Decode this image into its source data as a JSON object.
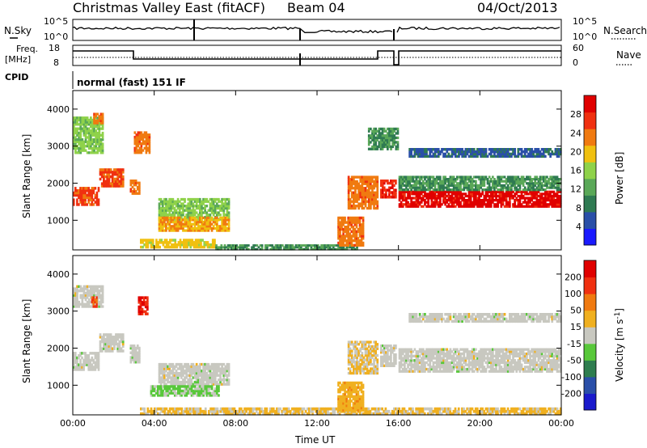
{
  "header": {
    "station": "Christmas Valley East (fitACF)",
    "beam": "Beam 04",
    "date": "04/Oct/2013",
    "mode": "normal (fast) 151 IF"
  },
  "noise_panel": {
    "left_label": "N.Sky",
    "right_label": "N.Search",
    "left_ticks": [
      "10^5",
      "10^0"
    ],
    "right_ticks": [
      "10^5",
      "10^0"
    ]
  },
  "freq_panel": {
    "left_label_1": "Freq.",
    "left_label_2": "[MHz]",
    "right_label": "Nave",
    "left_ticks": [
      "18",
      "8"
    ],
    "right_ticks": [
      "60",
      "0"
    ]
  },
  "cpid_label": "CPID",
  "colors": {
    "power": [
      "#1a1aff",
      "#2a4fa8",
      "#2f7a52",
      "#5aa858",
      "#8fd24a",
      "#f0c010",
      "#f07a10",
      "#f03010",
      "#e00000"
    ],
    "velocity": [
      "#1a1acc",
      "#2a4fa8",
      "#2e7d4f",
      "#58c83a",
      "#c8c8c0",
      "#f0b020",
      "#f07a10",
      "#f03010",
      "#e00000"
    ]
  },
  "chart_data": [
    {
      "type": "heatmap",
      "ylabel": "Slant Range [km]",
      "xlabel": "",
      "ylim": [
        200,
        4500
      ],
      "xlim_hours": [
        0,
        24
      ],
      "yticks": [
        "1000",
        "2000",
        "3000",
        "4000"
      ],
      "colorbar": {
        "label": "Power [dB]",
        "ticks": [
          "4",
          "8",
          "12",
          "16",
          "20",
          "24",
          "28"
        ],
        "range": [
          0,
          30
        ]
      },
      "bands": [
        {
          "t0": 0.0,
          "t1": 1.3,
          "r0": 1400,
          "r1": 1900,
          "level": 24
        },
        {
          "t0": 1.3,
          "t1": 2.5,
          "r0": 1900,
          "r1": 2400,
          "level": 24
        },
        {
          "t0": 2.8,
          "t1": 3.3,
          "r0": 1700,
          "r1": 2100,
          "level": 22
        },
        {
          "t0": 0.0,
          "t1": 1.5,
          "r0": 2800,
          "r1": 3800,
          "level": 14
        },
        {
          "t0": 1.0,
          "t1": 1.5,
          "r0": 3600,
          "r1": 3900,
          "level": 22
        },
        {
          "t0": 3.0,
          "t1": 3.8,
          "r0": 2800,
          "r1": 3400,
          "level": 22
        },
        {
          "t0": 4.2,
          "t1": 7.7,
          "r0": 1000,
          "r1": 1600,
          "level": 14
        },
        {
          "t0": 4.2,
          "t1": 7.7,
          "r0": 700,
          "r1": 1100,
          "level": 20
        },
        {
          "t0": 3.3,
          "t1": 7.0,
          "r0": 250,
          "r1": 500,
          "level": 18
        },
        {
          "t0": 7.0,
          "t1": 14.0,
          "r0": 200,
          "r1": 350,
          "level": 10
        },
        {
          "t0": 13.0,
          "t1": 14.3,
          "r0": 300,
          "r1": 1100,
          "level": 22
        },
        {
          "t0": 13.5,
          "t1": 15.0,
          "r0": 1300,
          "r1": 2200,
          "level": 22
        },
        {
          "t0": 15.1,
          "t1": 15.9,
          "r0": 1600,
          "r1": 2100,
          "level": 26
        },
        {
          "t0": 16.0,
          "t1": 24.0,
          "r0": 1350,
          "r1": 1800,
          "level": 28
        },
        {
          "t0": 16.0,
          "t1": 24.0,
          "r0": 1800,
          "r1": 2200,
          "level": 10
        },
        {
          "t0": 16.5,
          "t1": 24.0,
          "r0": 2700,
          "r1": 2950,
          "level": 6
        },
        {
          "t0": 14.5,
          "t1": 16.0,
          "r0": 2900,
          "r1": 3500,
          "level": 10
        }
      ]
    },
    {
      "type": "heatmap",
      "ylabel": "Slant Range [km]",
      "xlabel": "Time UT",
      "ylim": [
        200,
        4500
      ],
      "xlim_hours": [
        0,
        24
      ],
      "yticks": [
        "1000",
        "2000",
        "3000",
        "4000"
      ],
      "xticks": [
        "00:00",
        "04:00",
        "08:00",
        "12:00",
        "16:00",
        "20:00",
        "00:00"
      ],
      "colorbar": {
        "label_1": "Velocity [m s",
        "label_sup": "-1",
        "label_2": "]",
        "ticks": [
          "200",
          "100",
          "50",
          "15",
          "-15",
          "-50",
          "-100",
          "-200"
        ],
        "range": [
          -250,
          250
        ]
      },
      "bands": [
        {
          "t0": 0.0,
          "t1": 1.3,
          "r0": 1400,
          "r1": 1900,
          "level": 0
        },
        {
          "t0": 1.3,
          "t1": 2.5,
          "r0": 1900,
          "r1": 2400,
          "level": 0
        },
        {
          "t0": 2.8,
          "t1": 3.3,
          "r0": 1600,
          "r1": 2100,
          "level": 0
        },
        {
          "t0": 0.0,
          "t1": 1.5,
          "r0": 3100,
          "r1": 3700,
          "level": 0
        },
        {
          "t0": 0.9,
          "t1": 1.2,
          "r0": 3100,
          "r1": 3400,
          "level": 150
        },
        {
          "t0": 3.2,
          "t1": 3.7,
          "r0": 2900,
          "r1": 3400,
          "level": 200
        },
        {
          "t0": 4.2,
          "t1": 7.7,
          "r0": 1000,
          "r1": 1600,
          "level": 0
        },
        {
          "t0": 3.8,
          "t1": 7.2,
          "r0": 700,
          "r1": 1000,
          "level": -40
        },
        {
          "t0": 3.3,
          "t1": 24.0,
          "r0": 200,
          "r1": 400,
          "level": 40
        },
        {
          "t0": 13.0,
          "t1": 14.3,
          "r0": 300,
          "r1": 1100,
          "level": 60
        },
        {
          "t0": 13.5,
          "t1": 15.0,
          "r0": 1300,
          "r1": 2200,
          "level": 30
        },
        {
          "t0": 15.1,
          "t1": 15.9,
          "r0": 1500,
          "r1": 2100,
          "level": 0
        },
        {
          "t0": 16.0,
          "t1": 24.0,
          "r0": 1350,
          "r1": 2000,
          "level": 0
        },
        {
          "t0": 16.5,
          "t1": 24.0,
          "r0": 2700,
          "r1": 2950,
          "level": 0
        }
      ]
    }
  ]
}
